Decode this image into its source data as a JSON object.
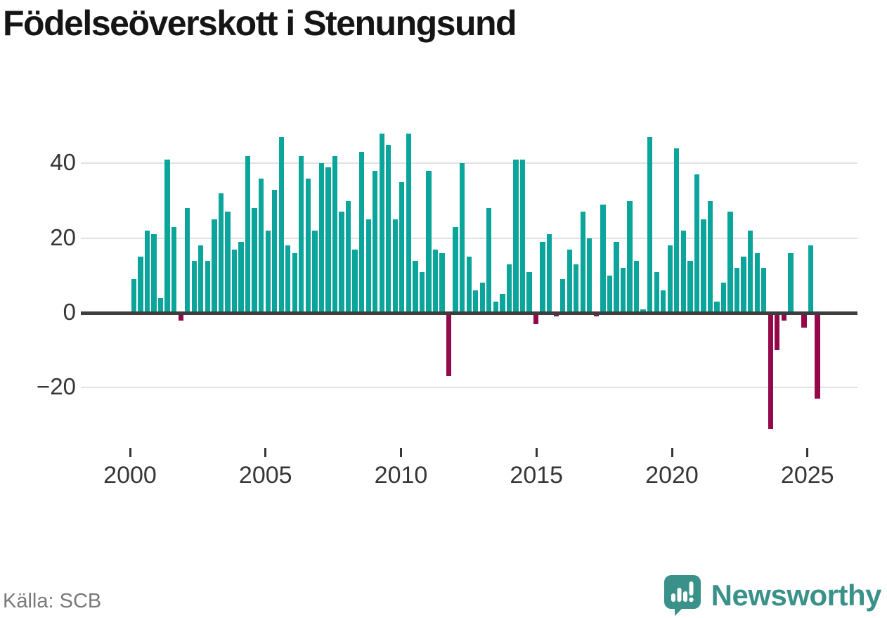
{
  "title": "Födelseöverskott i Stenungsund",
  "source": "Källa: SCB",
  "brand": {
    "name": "Newsworthy",
    "color": "#3a9189"
  },
  "chart_data": {
    "type": "bar",
    "title": "Födelseöverskott i Stenungsund",
    "x_axis": {
      "start_period": "2000-Q1",
      "period": "quarter",
      "tick_years": [
        2000,
        2005,
        2010,
        2015,
        2020,
        2025
      ]
    },
    "y_axis": {
      "ticks": [
        40,
        20,
        0,
        -20
      ],
      "tick_labels": [
        "40",
        "20",
        "0",
        "−20"
      ],
      "range": [
        -32,
        50
      ],
      "grid": true
    },
    "legend": "none",
    "colors": {
      "positive": "#0ca59c",
      "negative": "#94094a"
    },
    "series": [
      {
        "name": "Födelseöverskott",
        "values": [
          9,
          15,
          22,
          21,
          4,
          41,
          23,
          -2,
          28,
          14,
          18,
          14,
          25,
          32,
          27,
          17,
          19,
          42,
          28,
          36,
          22,
          33,
          47,
          18,
          16,
          42,
          36,
          22,
          40,
          39,
          42,
          27,
          30,
          17,
          43,
          25,
          38,
          48,
          45,
          25,
          35,
          48,
          14,
          11,
          38,
          17,
          16,
          -17,
          23,
          40,
          15,
          6,
          8,
          28,
          3,
          5,
          13,
          41,
          41,
          11,
          -3,
          19,
          21,
          -1,
          9,
          17,
          13,
          27,
          20,
          -1,
          29,
          10,
          19,
          12,
          30,
          14,
          1,
          47,
          11,
          6,
          18,
          44,
          22,
          14,
          37,
          25,
          30,
          3,
          8,
          27,
          12,
          15,
          22,
          16,
          12,
          -31,
          -10,
          -2,
          16,
          0,
          -4,
          18,
          -23
        ]
      }
    ]
  }
}
